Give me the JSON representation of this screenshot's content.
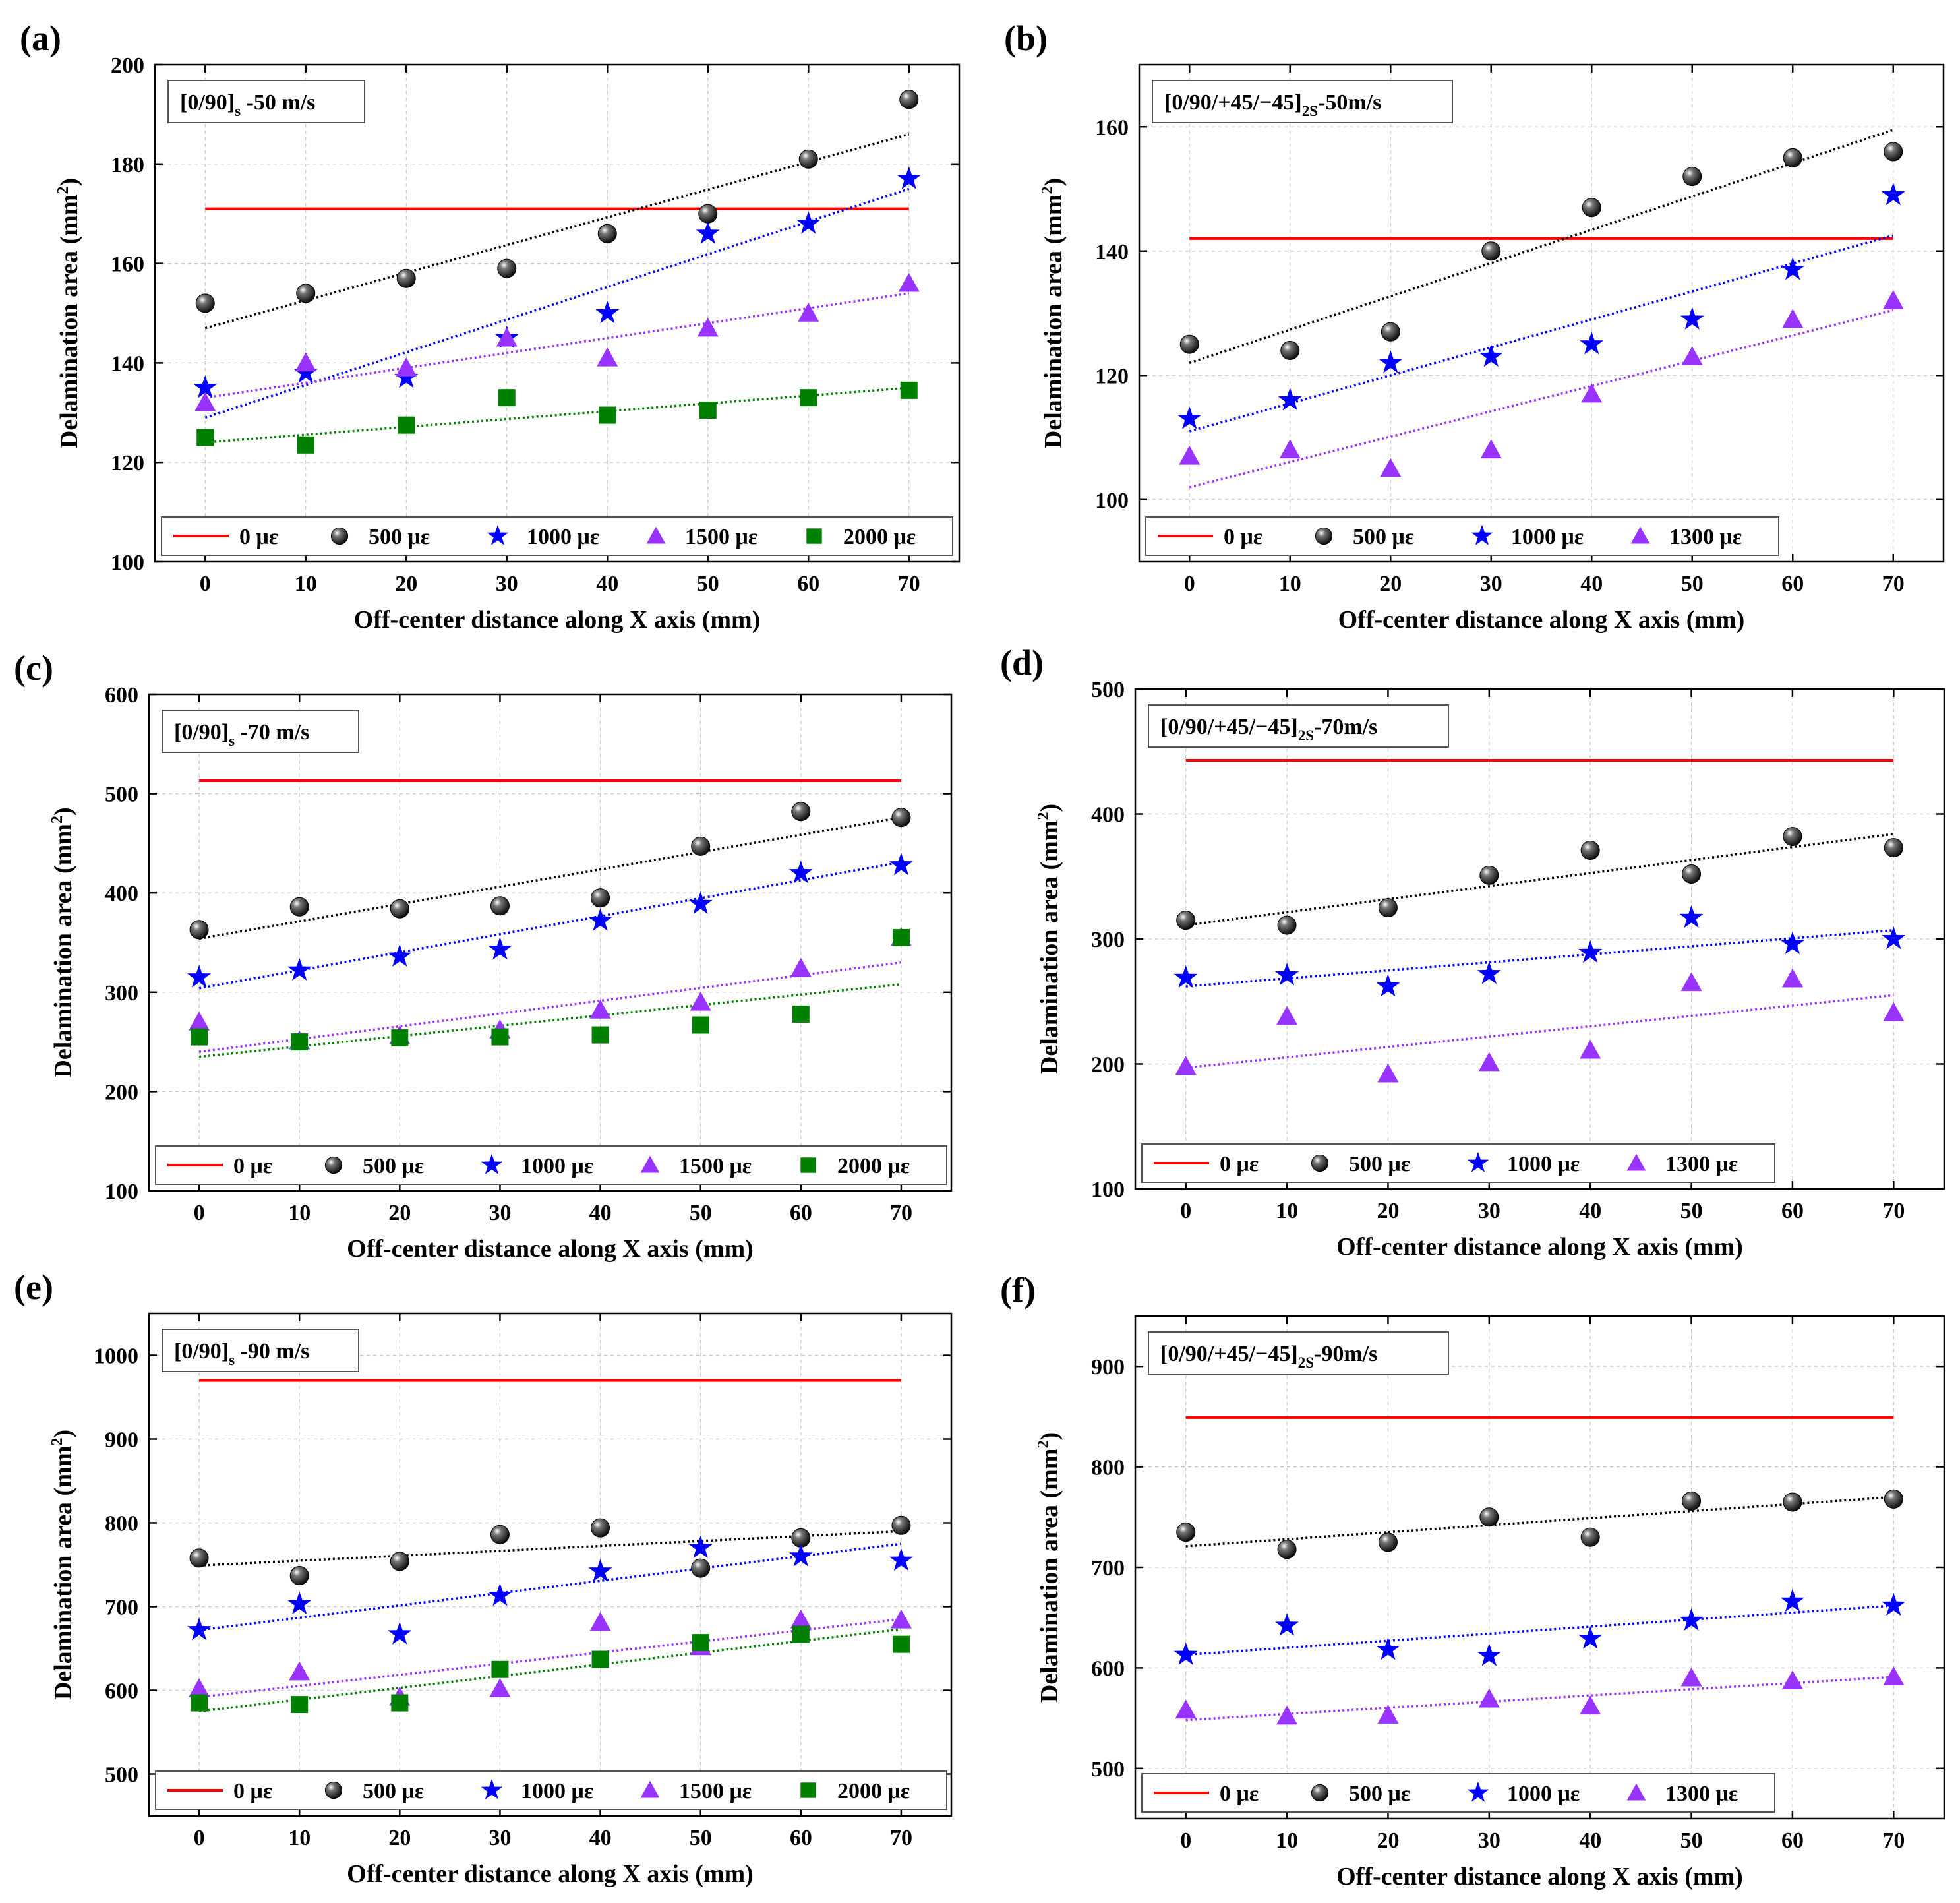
{
  "chart_data": [
    {
      "id": "a",
      "panel_label": "(a)",
      "type": "scatter",
      "title_main": "[0/90]",
      "title_sub": "s",
      "title_rest": " -50 m/s",
      "xlabel": "Off-center distance along X axis (mm)",
      "ylabel": "Delamination area (mm2)",
      "ylabel_main": "Delamination area (mm",
      "ylabel_sup": "2",
      "ylabel_end": ")",
      "x": [
        0,
        10,
        20,
        30,
        40,
        50,
        60,
        70
      ],
      "xlim": [
        -5,
        75
      ],
      "xticks": [
        "0",
        "10",
        "20",
        "30",
        "40",
        "50",
        "60",
        "70"
      ],
      "ylim": [
        100,
        200
      ],
      "yticks": [
        "100",
        "120",
        "140",
        "160",
        "180",
        "200"
      ],
      "reference": {
        "name": "0 με",
        "value": 171,
        "color": "#ff0000"
      },
      "series": [
        {
          "name": "500 με",
          "marker": "sphere",
          "color": "#000000",
          "values": [
            152,
            154,
            157,
            159,
            166,
            170,
            181,
            193
          ],
          "fit": [
            147,
            186
          ]
        },
        {
          "name": "1000 με",
          "marker": "star",
          "color": "#0000ff",
          "values": [
            135,
            138,
            137,
            145,
            150,
            166,
            168,
            177
          ],
          "fit": [
            129,
            175
          ]
        },
        {
          "name": "1500 με",
          "marker": "triangle",
          "color": "#9933ff",
          "values": [
            132,
            140,
            139,
            145,
            141,
            147,
            150,
            156
          ],
          "fit": [
            133,
            154
          ]
        },
        {
          "name": "2000 με",
          "marker": "square",
          "color": "#008000",
          "values": [
            125,
            123.5,
            127.5,
            133,
            129.5,
            130.5,
            133,
            134.5
          ],
          "fit": [
            124,
            135
          ]
        }
      ]
    },
    {
      "id": "b",
      "panel_label": "(b)",
      "type": "scatter",
      "title_main": "[0/90/+45/−45]",
      "title_sub": "2S",
      "title_rest": "-50m/s",
      "xlabel": "Off-center distance along X axis (mm)",
      "ylabel": "Delamination area (mm2)",
      "ylabel_main": "Delamination area (mm",
      "ylabel_sup": "2",
      "ylabel_end": ")",
      "x": [
        0,
        10,
        20,
        30,
        40,
        50,
        60,
        70
      ],
      "xlim": [
        -5,
        75
      ],
      "xticks": [
        "0",
        "10",
        "20",
        "30",
        "40",
        "50",
        "60",
        "70"
      ],
      "ylim": [
        90,
        170
      ],
      "yticks": [
        "100",
        "120",
        "140",
        "160"
      ],
      "reference": {
        "name": "0 με",
        "value": 142,
        "color": "#ff0000"
      },
      "series": [
        {
          "name": "500 με",
          "marker": "sphere",
          "color": "#000000",
          "values": [
            125,
            124,
            127,
            140,
            147,
            152,
            155,
            156
          ],
          "fit": [
            122,
            159.5
          ]
        },
        {
          "name": "1000 με",
          "marker": "star",
          "color": "#0000ff",
          "values": [
            113,
            116,
            122,
            123,
            125,
            129,
            137,
            149
          ],
          "fit": [
            111,
            142.5
          ]
        },
        {
          "name": "1300 με",
          "marker": "triangle",
          "color": "#9933ff",
          "values": [
            107,
            108,
            105,
            108,
            117,
            123,
            129,
            132
          ],
          "fit": [
            102,
            130.5
          ]
        }
      ]
    },
    {
      "id": "c",
      "panel_label": "(c)",
      "type": "scatter",
      "title_main": "[0/90]",
      "title_sub": "s",
      "title_rest": " -70 m/s",
      "xlabel": "Off-center distance along X axis (mm)",
      "ylabel": "Delamination area (mm2)",
      "ylabel_main": "Delamination area (mm",
      "ylabel_sup": "2",
      "ylabel_end": ")",
      "x": [
        0,
        10,
        20,
        30,
        40,
        50,
        60,
        70
      ],
      "xlim": [
        -5,
        75
      ],
      "xticks": [
        "0",
        "10",
        "20",
        "30",
        "40",
        "50",
        "60",
        "70"
      ],
      "ylim": [
        100,
        600
      ],
      "yticks": [
        "100",
        "200",
        "300",
        "400",
        "500",
        "600"
      ],
      "reference": {
        "name": "0 με",
        "value": 513,
        "color": "#ff0000"
      },
      "series": [
        {
          "name": "500 με",
          "marker": "sphere",
          "color": "#000000",
          "values": [
            363,
            386,
            384,
            387,
            395,
            447,
            482,
            476
          ],
          "fit": [
            354,
            476
          ]
        },
        {
          "name": "1000 με",
          "marker": "star",
          "color": "#0000ff",
          "values": [
            315,
            322,
            336,
            343,
            372,
            389,
            420,
            428
          ],
          "fit": [
            304,
            431
          ]
        },
        {
          "name": "1500 με",
          "marker": "triangle",
          "color": "#9933ff",
          "values": [
            270,
            251,
            256,
            262,
            282,
            290,
            324,
            355
          ],
          "fit": [
            240,
            330
          ]
        },
        {
          "name": "2000 με",
          "marker": "square",
          "color": "#008000",
          "values": [
            255,
            250,
            254,
            255,
            257,
            267,
            278,
            355
          ],
          "fit": [
            235,
            308
          ]
        }
      ]
    },
    {
      "id": "d",
      "panel_label": "(d)",
      "type": "scatter",
      "title_main": "[0/90/+45/−45]",
      "title_sub": "2S",
      "title_rest": "-70m/s",
      "xlabel": "Off-center distance along X axis (mm)",
      "ylabel": "Delamination area (mm2)",
      "ylabel_main": "Delamination area (mm",
      "ylabel_sup": "2",
      "ylabel_end": ")",
      "x": [
        0,
        10,
        20,
        30,
        40,
        50,
        60,
        70
      ],
      "xlim": [
        -5,
        75
      ],
      "xticks": [
        "0",
        "10",
        "20",
        "30",
        "40",
        "50",
        "60",
        "70"
      ],
      "ylim": [
        100,
        500
      ],
      "yticks": [
        "100",
        "200",
        "300",
        "400",
        "500"
      ],
      "reference": {
        "name": "0 με",
        "value": 443,
        "color": "#ff0000"
      },
      "series": [
        {
          "name": "500 με",
          "marker": "sphere",
          "color": "#000000",
          "values": [
            315,
            311,
            325,
            351,
            371,
            352,
            382,
            373
          ],
          "fit": [
            311,
            384
          ]
        },
        {
          "name": "1000 με",
          "marker": "star",
          "color": "#0000ff",
          "values": [
            269,
            271,
            262,
            272,
            289,
            317,
            296,
            300
          ],
          "fit": [
            262,
            307
          ]
        },
        {
          "name": "1300 με",
          "marker": "triangle",
          "color": "#9933ff",
          "values": [
            198,
            238,
            192,
            201,
            211,
            265,
            268,
            241
          ],
          "fit": [
            197,
            255
          ]
        }
      ]
    },
    {
      "id": "e",
      "panel_label": "(e)",
      "type": "scatter",
      "title_main": "[0/90]",
      "title_sub": "s",
      "title_rest": " -90 m/s",
      "xlabel": "Off-center distance along X axis (mm)",
      "ylabel": "Delamination area (mm2)",
      "ylabel_main": "Delamination area (mm",
      "ylabel_sup": "2",
      "ylabel_end": ")",
      "x": [
        0,
        10,
        20,
        30,
        40,
        50,
        60,
        70
      ],
      "xlim": [
        -5,
        75
      ],
      "xticks": [
        "0",
        "10",
        "20",
        "30",
        "40",
        "50",
        "60",
        "70"
      ],
      "ylim": [
        450,
        1050
      ],
      "yticks": [
        "500",
        "600",
        "700",
        "800",
        "900",
        "1000"
      ],
      "reference": {
        "name": "0 με",
        "value": 970,
        "color": "#ff0000"
      },
      "series": [
        {
          "name": "500 με",
          "marker": "sphere",
          "color": "#000000",
          "values": [
            758,
            737,
            754,
            786,
            794,
            746,
            782,
            797
          ],
          "fit": [
            749,
            790
          ]
        },
        {
          "name": "1000 με",
          "marker": "star",
          "color": "#0000ff",
          "values": [
            672,
            703,
            667,
            713,
            742,
            770,
            760,
            755
          ],
          "fit": [
            672,
            775
          ]
        },
        {
          "name": "1500 με",
          "marker": "triangle",
          "color": "#9933ff",
          "values": [
            602,
            622,
            592,
            602,
            681,
            652,
            684,
            684
          ],
          "fit": [
            592,
            685
          ]
        },
        {
          "name": "2000 με",
          "marker": "square",
          "color": "#008000",
          "values": [
            585,
            583,
            585,
            625,
            637,
            657,
            667,
            655
          ],
          "fit": [
            575,
            673
          ]
        }
      ]
    },
    {
      "id": "f",
      "panel_label": "(f)",
      "type": "scatter",
      "title_main": "[0/90/+45/−45]",
      "title_sub": "2S",
      "title_rest": "-90m/s",
      "xlabel": "Off-center distance along X axis (mm)",
      "ylabel": "Delamination area (mm2)",
      "ylabel_main": "Delamination area (mm",
      "ylabel_sup": "2",
      "ylabel_end": ")",
      "x": [
        0,
        10,
        20,
        30,
        40,
        50,
        60,
        70
      ],
      "xlim": [
        -5,
        75
      ],
      "xticks": [
        "0",
        "10",
        "20",
        "30",
        "40",
        "50",
        "60",
        "70"
      ],
      "ylim": [
        450,
        950
      ],
      "yticks": [
        "500",
        "600",
        "700",
        "800",
        "900"
      ],
      "reference": {
        "name": "0 με",
        "value": 849,
        "color": "#ff0000"
      },
      "series": [
        {
          "name": "500 με",
          "marker": "sphere",
          "color": "#000000",
          "values": [
            735,
            718,
            725,
            750,
            730,
            766,
            765,
            768
          ],
          "fit": [
            721,
            770
          ]
        },
        {
          "name": "1000 με",
          "marker": "star",
          "color": "#0000ff",
          "values": [
            613,
            642,
            618,
            612,
            629,
            647,
            666,
            662
          ],
          "fit": [
            613,
            662
          ]
        },
        {
          "name": "1300 με",
          "marker": "triangle",
          "color": "#9933ff",
          "values": [
            558,
            552,
            553,
            569,
            562,
            590,
            587,
            591
          ],
          "fit": [
            548,
            591
          ]
        }
      ]
    }
  ]
}
